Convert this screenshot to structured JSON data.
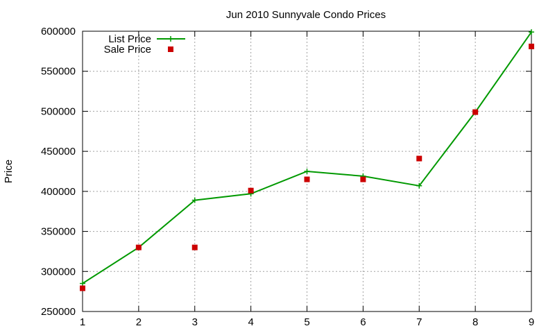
{
  "chart_data": {
    "type": "line",
    "title": "Jun 2010 Sunnyvale Condo Prices",
    "xlabel": "",
    "ylabel": "Price",
    "xlim": [
      1,
      9
    ],
    "ylim": [
      250000,
      600000
    ],
    "x_ticks": [
      1,
      2,
      3,
      4,
      5,
      6,
      7,
      8,
      9
    ],
    "y_ticks": [
      250000,
      300000,
      350000,
      400000,
      450000,
      500000,
      550000,
      600000
    ],
    "grid": true,
    "legend_position": "top-left",
    "x": [
      1,
      2,
      3,
      4,
      5,
      6,
      7,
      8,
      9
    ],
    "series": [
      {
        "name": "List Price",
        "style": "line+plus-markers",
        "color": "#009900",
        "values": [
          285000,
          330000,
          389000,
          397000,
          425000,
          419000,
          407000,
          499000,
          599000
        ]
      },
      {
        "name": "Sale Price",
        "style": "square-markers",
        "color": "#cc0000",
        "values": [
          279000,
          330000,
          330000,
          401000,
          415000,
          415000,
          441000,
          499000,
          581000
        ]
      }
    ]
  }
}
